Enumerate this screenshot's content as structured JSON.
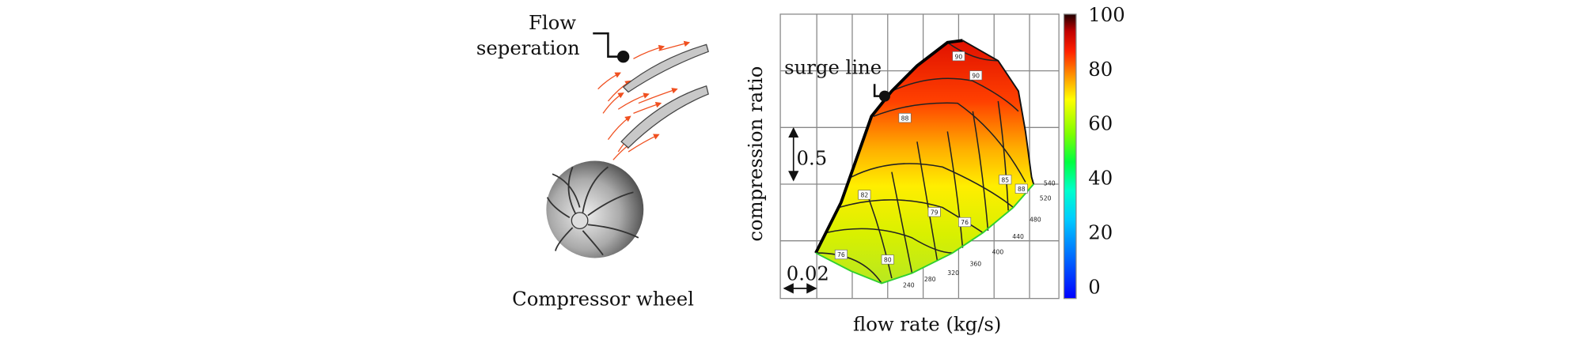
{
  "left_panel": {
    "annotation_lines": [
      "Flow",
      "seperation"
    ],
    "caption": "Compressor wheel"
  },
  "right_panel": {
    "annotation": "surge line",
    "y_axis_label": "compression ratio",
    "x_axis_label": "flow rate (kg/s)",
    "y_scale_label": "0.5",
    "x_scale_label": "0.02",
    "colorbar_ticks": [
      100,
      80,
      60,
      40,
      20,
      0
    ],
    "efficiency_labels": [
      "90",
      "90",
      "88",
      "85",
      "88",
      "82",
      "79",
      "76",
      "76",
      "80"
    ],
    "speed_labels": [
      "240",
      "280",
      "320",
      "360",
      "400",
      "440",
      "480",
      "520",
      "540"
    ]
  }
}
